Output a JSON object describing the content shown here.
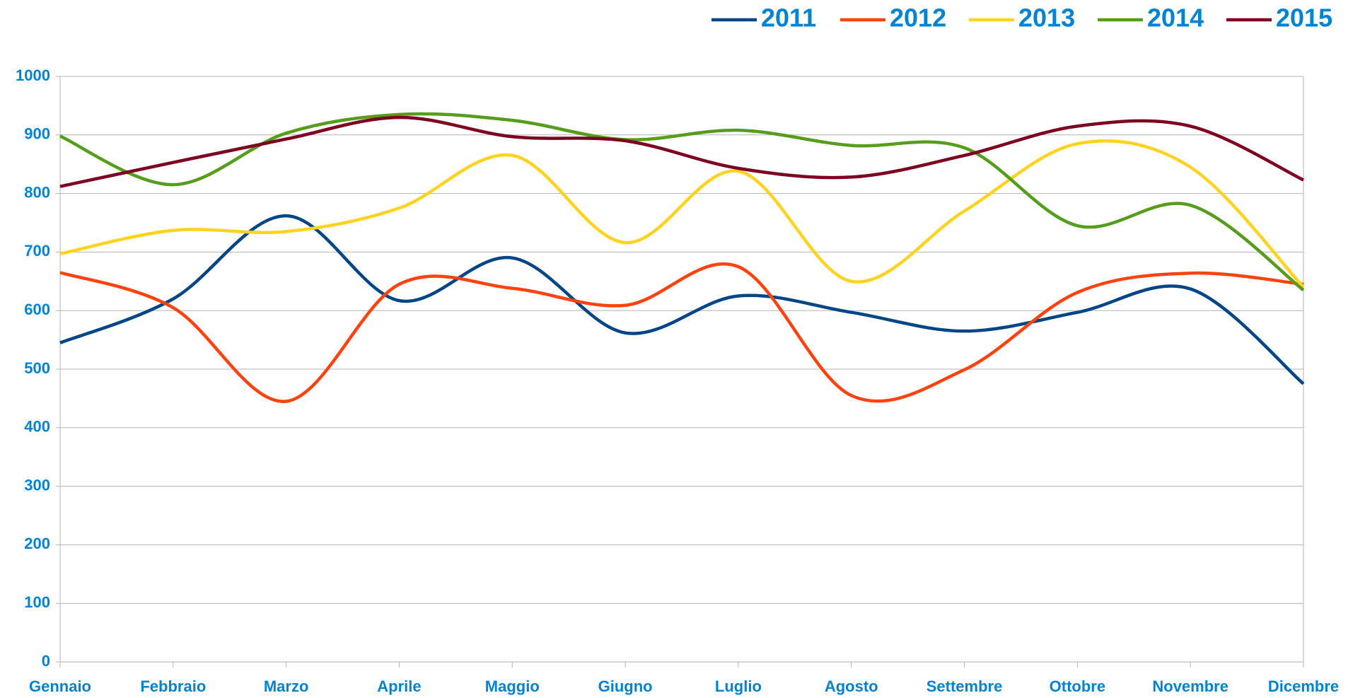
{
  "chart_data": {
    "type": "line",
    "categories": [
      "Gennaio",
      "Febbraio",
      "Marzo",
      "Aprile",
      "Maggio",
      "Giugno",
      "Luglio",
      "Agosto",
      "Settembre",
      "Ottobre",
      "Novembre",
      "Dicembre"
    ],
    "series": [
      {
        "name": "2011",
        "color": "#004586",
        "values": [
          545,
          620,
          762,
          617,
          690,
          562,
          625,
          597,
          565,
          597,
          637,
          475
        ]
      },
      {
        "name": "2012",
        "color": "#ff420e",
        "values": [
          665,
          605,
          445,
          645,
          638,
          609,
          675,
          455,
          499,
          631,
          664,
          645
        ]
      },
      {
        "name": "2013",
        "color": "#ffd320",
        "values": [
          697,
          737,
          735,
          775,
          865,
          716,
          838,
          650,
          770,
          885,
          845,
          640
        ]
      },
      {
        "name": "2014",
        "color": "#579d1c",
        "values": [
          898,
          815,
          903,
          935,
          925,
          892,
          908,
          882,
          878,
          745,
          780,
          635
        ]
      },
      {
        "name": "2015",
        "color": "#7e0021",
        "values": [
          812,
          853,
          893,
          930,
          897,
          890,
          843,
          828,
          865,
          915,
          915,
          823
        ]
      }
    ],
    "ylim": [
      0,
      1000
    ],
    "yticks": [
      0,
      100,
      200,
      300,
      400,
      500,
      600,
      700,
      800,
      900,
      1000
    ],
    "grid": true,
    "smooth": true,
    "legend": "top-right"
  }
}
